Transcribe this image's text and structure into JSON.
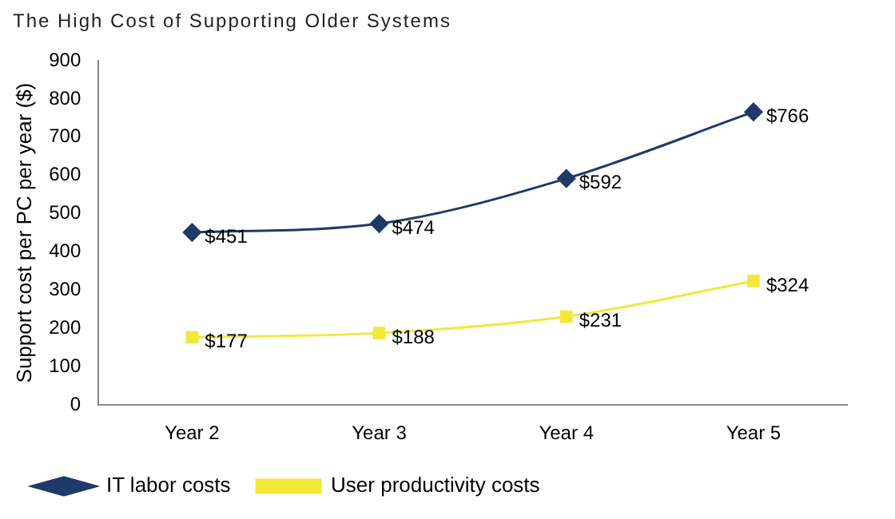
{
  "chart_data": {
    "type": "line",
    "title": "The High Cost of Supporting Older Systems",
    "ylabel": "Support cost per PC per year ($)",
    "categories": [
      "Year 2",
      "Year 3",
      "Year 4",
      "Year 5"
    ],
    "series": [
      {
        "name": "IT labor costs",
        "color": "#1f3a68",
        "values": [
          451,
          474,
          592,
          766
        ],
        "marker": "diamond",
        "value_labels": [
          "$451",
          "$474",
          "$592",
          "$766"
        ]
      },
      {
        "name": "User productivity costs",
        "color": "#f2e83a",
        "values": [
          177,
          188,
          231,
          324
        ],
        "marker": "square",
        "value_labels": [
          "$177",
          "$188",
          "$231",
          "$324"
        ]
      }
    ],
    "ylim": [
      0,
      900
    ],
    "yticks": [
      0,
      100,
      200,
      300,
      400,
      500,
      600,
      700,
      800,
      900
    ],
    "grid": false,
    "legend": "bottom left"
  }
}
